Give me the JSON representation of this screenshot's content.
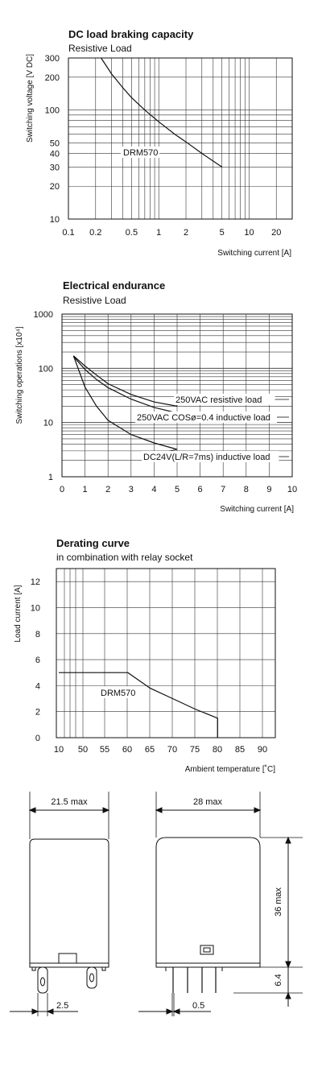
{
  "chart_data": [
    {
      "type": "line",
      "title": "DC load braking capacity",
      "subtitle": "Resistive Load",
      "xlabel": "Switching current [A]",
      "ylabel": "Switching voltage [V DC]",
      "xscale": "log",
      "yscale": "log",
      "xlim": [
        0.1,
        30
      ],
      "ylim": [
        10,
        300
      ],
      "x_ticks": [
        "0.1",
        "0.2",
        "0.5",
        "1",
        "2",
        "5",
        "10",
        "20"
      ],
      "y_ticks": [
        "10",
        "20",
        "30",
        "40",
        "50",
        "100",
        "200",
        "300"
      ],
      "grid": true,
      "annotations": [
        "DRM570"
      ],
      "series": [
        {
          "name": "DRM570",
          "x": [
            0.23,
            0.3,
            0.4,
            0.5,
            0.7,
            1,
            1.5,
            2,
            3,
            4,
            5
          ],
          "y": [
            300,
            215,
            160,
            130,
            100,
            78,
            60,
            51,
            40,
            34,
            30
          ]
        }
      ]
    },
    {
      "type": "line",
      "title": "Electrical endurance",
      "subtitle": "Resistive Load",
      "xlabel": "Switching current [A]",
      "ylabel": "Switching operations [x10⁴]",
      "yscale": "log",
      "xlim": [
        0,
        10
      ],
      "ylim": [
        1,
        1000
      ],
      "x_ticks": [
        "0",
        "1",
        "2",
        "3",
        "4",
        "5",
        "6",
        "7",
        "8",
        "9",
        "10"
      ],
      "y_ticks": [
        "1",
        "10",
        "100",
        "1000"
      ],
      "grid": true,
      "series": [
        {
          "name": "250VAC resistive load",
          "x": [
            0.5,
            1,
            1.5,
            2,
            3,
            4,
            5
          ],
          "y": [
            170,
            110,
            75,
            52,
            33,
            24,
            20
          ]
        },
        {
          "name": "250VAC COSø=0.4 inductive load",
          "x": [
            0.5,
            1,
            1.5,
            2,
            3,
            4,
            5
          ],
          "y": [
            165,
            95,
            62,
            44,
            27,
            19,
            15
          ]
        },
        {
          "name": "DC24V(L/R=7ms) inductive load",
          "x": [
            0.5,
            1,
            1.5,
            2,
            3,
            4,
            5
          ],
          "y": [
            170,
            45,
            20,
            11,
            6,
            4.2,
            3.2
          ]
        }
      ]
    },
    {
      "type": "line",
      "title": "Derating curve",
      "subtitle": "in combination with relay socket",
      "xlabel": "Ambient temperature [˚C]",
      "ylabel": "Load current [A]",
      "xlim": [
        10,
        90
      ],
      "ylim": [
        0,
        13
      ],
      "x_ticks": [
        "10",
        "50",
        "55",
        "60",
        "65",
        "70",
        "75",
        "80",
        "85",
        "90"
      ],
      "y_ticks": [
        "0",
        "2",
        "4",
        "6",
        "8",
        "10",
        "12"
      ],
      "grid": true,
      "annotations": [
        "DRM570"
      ],
      "series": [
        {
          "name": "DRM570",
          "x": [
            10,
            60,
            65,
            70,
            75,
            80,
            80
          ],
          "y": [
            5,
            5,
            3.8,
            3,
            2.2,
            1.5,
            0
          ]
        }
      ]
    }
  ],
  "drawing": {
    "front_width": "21.5 max",
    "pin_spacing": "2.5",
    "side_width": "28 max",
    "height": "36 max",
    "pin_length": "6.4",
    "pin_thickness": "0.5"
  }
}
